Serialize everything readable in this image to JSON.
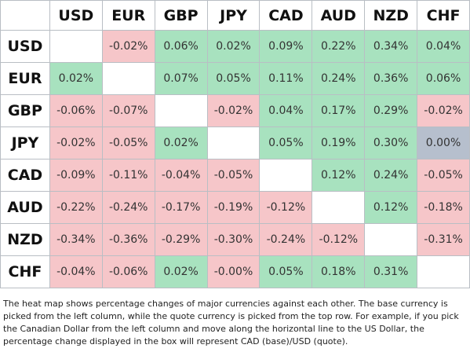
{
  "headers": [
    "USD",
    "EUR",
    "GBP",
    "JPY",
    "CAD",
    "AUD",
    "NZD",
    "CHF"
  ],
  "rows": [
    {
      "label": "USD",
      "cells": [
        "",
        "-0.02%",
        "0.06%",
        "0.02%",
        "0.09%",
        "0.22%",
        "0.34%",
        "0.04%"
      ]
    },
    {
      "label": "EUR",
      "cells": [
        "0.02%",
        "",
        "0.07%",
        "0.05%",
        "0.11%",
        "0.24%",
        "0.36%",
        "0.06%"
      ]
    },
    {
      "label": "GBP",
      "cells": [
        "-0.06%",
        "-0.07%",
        "",
        "-0.02%",
        "0.04%",
        "0.17%",
        "0.29%",
        "-0.02%"
      ]
    },
    {
      "label": "JPY",
      "cells": [
        "-0.02%",
        "-0.05%",
        "0.02%",
        "",
        "0.05%",
        "0.19%",
        "0.30%",
        "0.00%"
      ]
    },
    {
      "label": "CAD",
      "cells": [
        "-0.09%",
        "-0.11%",
        "-0.04%",
        "-0.05%",
        "",
        "0.12%",
        "0.24%",
        "-0.05%"
      ]
    },
    {
      "label": "AUD",
      "cells": [
        "-0.22%",
        "-0.24%",
        "-0.17%",
        "-0.19%",
        "-0.12%",
        "",
        "0.12%",
        "-0.18%"
      ]
    },
    {
      "label": "NZD",
      "cells": [
        "-0.34%",
        "-0.36%",
        "-0.29%",
        "-0.30%",
        "-0.24%",
        "-0.12%",
        "",
        "-0.31%"
      ]
    },
    {
      "label": "CHF",
      "cells": [
        "-0.04%",
        "-0.06%",
        "0.02%",
        "-0.00%",
        "0.05%",
        "0.18%",
        "0.31%",
        ""
      ]
    }
  ],
  "colors": {
    "positive": "#a8e2bf",
    "negative": "#f6c6c9",
    "neutral": "#b6bfcd"
  },
  "note": "The heat map shows percentage changes of major currencies against each other. The base currency is picked from the left column, while the quote currency is picked from the top row. For example, if you pick the Canadian Dollar from the left column and move along the horizontal line to the US Dollar, the percentage change displayed in the box will represent CAD (base)/USD (quote)."
}
